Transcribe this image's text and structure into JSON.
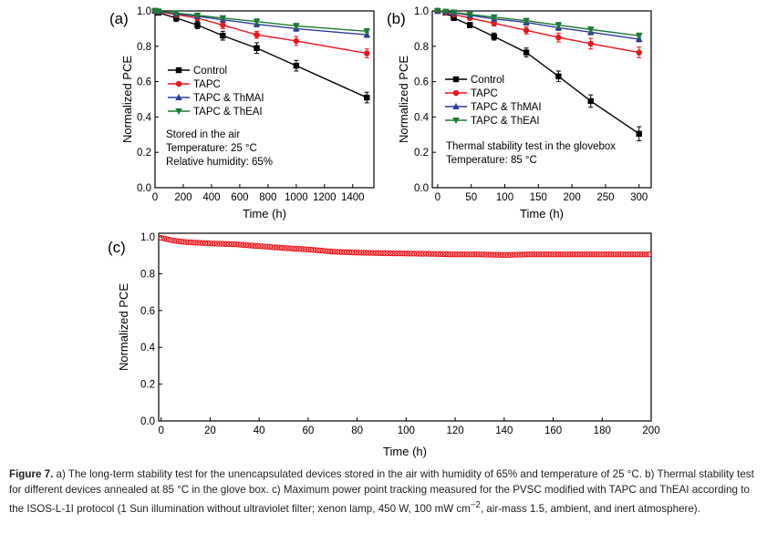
{
  "chart_data": [
    {
      "type": "line",
      "panel_label": "(a)",
      "xlabel": "Time (h)",
      "ylabel": "Normalized PCE",
      "xlim": [
        0,
        1550
      ],
      "ylim": [
        0.0,
        1.0
      ],
      "xticks": [
        0,
        200,
        400,
        600,
        800,
        1000,
        1200,
        1400
      ],
      "yticks": [
        0.0,
        0.2,
        0.4,
        0.6,
        0.8,
        1.0
      ],
      "ytick_labels": [
        "0.0",
        "0.2",
        "0.4",
        "0.6",
        "0.8",
        "1.0"
      ],
      "legend_position": "left-middle",
      "annotations": [
        "Stored in the air",
        "Temperature: 25 °C",
        "Relative humidity: 65%"
      ],
      "series": [
        {
          "name": "Control",
          "color": "#000000",
          "marker": "square",
          "x": [
            0,
            24,
            150,
            300,
            480,
            720,
            1000,
            1500
          ],
          "y": [
            1.0,
            0.99,
            0.96,
            0.92,
            0.86,
            0.79,
            0.69,
            0.51
          ],
          "err": [
            0.005,
            0.01,
            0.02,
            0.02,
            0.025,
            0.03,
            0.03,
            0.03
          ]
        },
        {
          "name": "TAPC",
          "color": "#e8141b",
          "marker": "circle",
          "x": [
            0,
            24,
            150,
            300,
            480,
            720,
            1000,
            1500
          ],
          "y": [
            1.0,
            0.995,
            0.98,
            0.96,
            0.92,
            0.865,
            0.83,
            0.76
          ],
          "err": [
            0.005,
            0.01,
            0.015,
            0.015,
            0.02,
            0.02,
            0.025,
            0.025
          ]
        },
        {
          "name": "TAPC & ThMAI",
          "color": "#2e3c9a",
          "marker": "triangle-up",
          "x": [
            0,
            24,
            150,
            300,
            480,
            720,
            1000,
            1500
          ],
          "y": [
            1.0,
            0.998,
            0.985,
            0.97,
            0.95,
            0.925,
            0.9,
            0.865
          ],
          "err": [
            0.005,
            0.008,
            0.01,
            0.01,
            0.012,
            0.015,
            0.015,
            0.015
          ]
        },
        {
          "name": "TAPC & ThEAI",
          "color": "#1d7a34",
          "marker": "triangle-down",
          "x": [
            0,
            24,
            150,
            300,
            480,
            720,
            1000,
            1500
          ],
          "y": [
            1.0,
            0.998,
            0.988,
            0.975,
            0.96,
            0.94,
            0.915,
            0.885
          ],
          "err": [
            0.005,
            0.008,
            0.01,
            0.01,
            0.012,
            0.015,
            0.015,
            0.015
          ]
        }
      ]
    },
    {
      "type": "line",
      "panel_label": "(b)",
      "xlabel": "Time (h)",
      "ylabel": "Normalized PCE",
      "xlim": [
        -8,
        318
      ],
      "ylim": [
        0.0,
        1.0
      ],
      "xticks": [
        0,
        50,
        100,
        150,
        200,
        250,
        300
      ],
      "yticks": [
        0.0,
        0.2,
        0.4,
        0.6,
        0.8,
        1.0
      ],
      "ytick_labels": [
        "0.0",
        "0.2",
        "0.4",
        "0.6",
        "0.8",
        "1.0"
      ],
      "legend_position": "left-middle",
      "annotations": [
        "Thermal stability test in the glovebox",
        "Temperature: 85 °C"
      ],
      "series": [
        {
          "name": "Control",
          "color": "#000000",
          "marker": "square",
          "x": [
            0,
            12,
            24,
            48,
            84,
            132,
            180,
            228,
            300
          ],
          "y": [
            1.0,
            0.99,
            0.96,
            0.92,
            0.855,
            0.765,
            0.63,
            0.49,
            0.305
          ],
          "err": [
            0.003,
            0.008,
            0.01,
            0.015,
            0.02,
            0.025,
            0.03,
            0.035,
            0.04
          ]
        },
        {
          "name": "TAPC",
          "color": "#e8141b",
          "marker": "circle",
          "x": [
            0,
            12,
            24,
            48,
            84,
            132,
            180,
            228,
            300
          ],
          "y": [
            1.0,
            0.99,
            0.98,
            0.96,
            0.93,
            0.89,
            0.85,
            0.815,
            0.765
          ],
          "err": [
            0.003,
            0.008,
            0.01,
            0.012,
            0.015,
            0.02,
            0.025,
            0.03,
            0.03
          ]
        },
        {
          "name": "TAPC & ThMAI",
          "color": "#2e3c9a",
          "marker": "triangle-up",
          "x": [
            0,
            12,
            24,
            48,
            84,
            132,
            180,
            228,
            300
          ],
          "y": [
            1.0,
            0.995,
            0.99,
            0.975,
            0.955,
            0.935,
            0.905,
            0.88,
            0.84
          ],
          "err": [
            0.003,
            0.006,
            0.008,
            0.01,
            0.012,
            0.015,
            0.015,
            0.015,
            0.015
          ]
        },
        {
          "name": "TAPC & ThEAI",
          "color": "#1d7a34",
          "marker": "triangle-down",
          "x": [
            0,
            12,
            24,
            48,
            84,
            132,
            180,
            228,
            300
          ],
          "y": [
            1.0,
            0.997,
            0.992,
            0.98,
            0.965,
            0.945,
            0.92,
            0.895,
            0.86
          ],
          "err": [
            0.003,
            0.006,
            0.008,
            0.01,
            0.012,
            0.012,
            0.015,
            0.015,
            0.015
          ]
        }
      ]
    },
    {
      "type": "scatter",
      "panel_label": "(c)",
      "xlabel": "Time (h)",
      "ylabel": "Normalized PCE",
      "xlim": [
        -1,
        200
      ],
      "ylim": [
        0.0,
        1.02
      ],
      "xticks": [
        0,
        20,
        40,
        60,
        80,
        100,
        120,
        140,
        160,
        180,
        200
      ],
      "yticks": [
        0.0,
        0.2,
        0.4,
        0.6,
        0.8,
        1.0
      ],
      "ytick_labels": [
        "0.0",
        "0.2",
        "0.4",
        "0.6",
        "0.8",
        "1.0"
      ],
      "series": [
        {
          "color": "#e8141b",
          "marker": "circle-open",
          "x": [
            0,
            5,
            10,
            20,
            30,
            40,
            50,
            60,
            70,
            80,
            90,
            100,
            110,
            120,
            130,
            140,
            150,
            160,
            170,
            180,
            190,
            200
          ],
          "y": [
            0.995,
            0.98,
            0.972,
            0.965,
            0.96,
            0.95,
            0.94,
            0.932,
            0.92,
            0.915,
            0.912,
            0.91,
            0.908,
            0.905,
            0.905,
            0.902,
            0.905,
            0.905,
            0.905,
            0.905,
            0.905,
            0.905
          ]
        }
      ]
    }
  ],
  "caption": {
    "label": "Figure 7.",
    "text": " a) The long-term stability test for the unencapsulated devices stored in the air with humidity of 65% and temperature of 25 °C. b) Thermal stability test for different devices annealed at 85 °C in the glove box. c) Maximum power point tracking measured for the PVSC modified with TAPC and ThEAI according to the ISOS-L-1I protocol (1 Sun illumination without ultraviolet filter; xenon lamp, 450 W, 100 mW cm",
    "superscript": "−2",
    "text_end": ", air-mass 1.5, ambient, and inert atmosphere)."
  }
}
